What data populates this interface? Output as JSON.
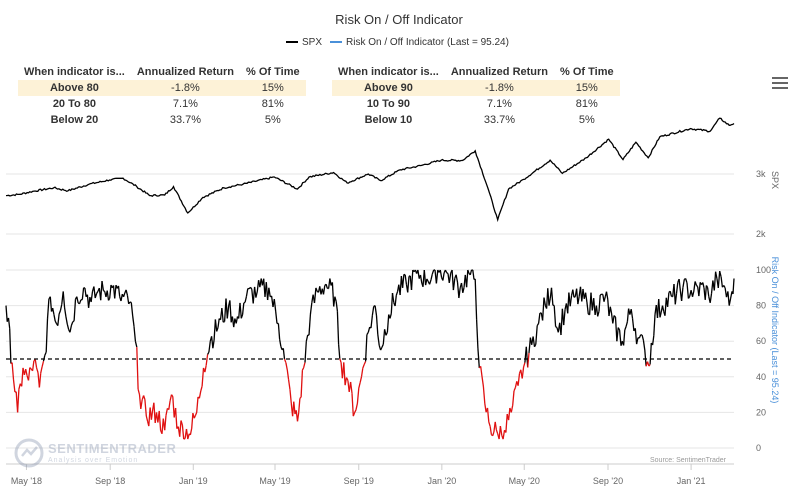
{
  "chart_data": {
    "type": "line",
    "title": "Risk On / Off Indicator",
    "legend": [
      {
        "name": "SPX",
        "color": "#000000"
      },
      {
        "name": "Risk On / Off Indicator (Last = 95.24)",
        "color": "#4a90d9"
      }
    ],
    "x_tick_labels": [
      "May '18",
      "Sep '18",
      "Jan '19",
      "May '19",
      "Sep '19",
      "Jan '20",
      "May '20",
      "Sep '20",
      "Jan '21"
    ],
    "x_tick_dates": [
      "2018-05-01",
      "2018-09-01",
      "2019-01-01",
      "2019-05-01",
      "2019-09-01",
      "2020-01-01",
      "2020-05-01",
      "2020-09-01",
      "2021-01-01"
    ],
    "x_range": [
      "2018-04-01",
      "2021-03-05"
    ],
    "spx": {
      "name": "SPX",
      "axis_title": "SPX",
      "y_tick_labels": [
        "3k",
        "2k"
      ],
      "y_tick_values": [
        3000,
        2000
      ],
      "ylim": [
        1900,
        4100
      ],
      "points": [
        [
          "2018-04-01",
          2640
        ],
        [
          "2018-04-20",
          2660
        ],
        [
          "2018-05-10",
          2710
        ],
        [
          "2018-06-10",
          2770
        ],
        [
          "2018-07-01",
          2720
        ],
        [
          "2018-08-01",
          2830
        ],
        [
          "2018-08-31",
          2900
        ],
        [
          "2018-09-20",
          2930
        ],
        [
          "2018-10-10",
          2790
        ],
        [
          "2018-10-29",
          2640
        ],
        [
          "2018-11-20",
          2650
        ],
        [
          "2018-12-03",
          2790
        ],
        [
          "2018-12-24",
          2350
        ],
        [
          "2019-01-15",
          2610
        ],
        [
          "2019-02-15",
          2770
        ],
        [
          "2019-03-15",
          2830
        ],
        [
          "2019-04-30",
          2950
        ],
        [
          "2019-06-03",
          2750
        ],
        [
          "2019-06-20",
          2950
        ],
        [
          "2019-07-26",
          3025
        ],
        [
          "2019-08-15",
          2850
        ],
        [
          "2019-09-15",
          3000
        ],
        [
          "2019-10-03",
          2890
        ],
        [
          "2019-11-01",
          3070
        ],
        [
          "2019-12-01",
          3140
        ],
        [
          "2019-12-31",
          3230
        ],
        [
          "2020-01-31",
          3225
        ],
        [
          "2020-02-19",
          3386
        ],
        [
          "2020-03-09",
          2750
        ],
        [
          "2020-03-23",
          2237
        ],
        [
          "2020-04-08",
          2750
        ],
        [
          "2020-04-30",
          2910
        ],
        [
          "2020-06-08",
          3230
        ],
        [
          "2020-06-26",
          3010
        ],
        [
          "2020-07-31",
          3270
        ],
        [
          "2020-09-02",
          3580
        ],
        [
          "2020-09-23",
          3240
        ],
        [
          "2020-10-12",
          3530
        ],
        [
          "2020-10-30",
          3270
        ],
        [
          "2020-11-16",
          3620
        ],
        [
          "2020-12-31",
          3756
        ],
        [
          "2021-01-29",
          3714
        ],
        [
          "2021-02-12",
          3930
        ],
        [
          "2021-02-26",
          3811
        ],
        [
          "2021-03-05",
          3841
        ]
      ]
    },
    "indicator": {
      "name": "Risk On / Off Indicator (Last = 95.24)",
      "axis_title": "Risk On / Off Indicator (Last = 95.24)",
      "last": 95.24,
      "threshold": 50,
      "color_above": "#000000",
      "color_below": "#e01010",
      "y_tick_values": [
        0,
        20,
        40,
        60,
        80,
        100
      ],
      "ylim": [
        0,
        100
      ],
      "points": [
        [
          "2018-04-01",
          80
        ],
        [
          "2018-04-10",
          48
        ],
        [
          "2018-04-18",
          20
        ],
        [
          "2018-04-26",
          45
        ],
        [
          "2018-05-04",
          38
        ],
        [
          "2018-05-12",
          49
        ],
        [
          "2018-05-20",
          34
        ],
        [
          "2018-05-28",
          52
        ],
        [
          "2018-06-05",
          85
        ],
        [
          "2018-06-14",
          70
        ],
        [
          "2018-06-24",
          88
        ],
        [
          "2018-07-04",
          65
        ],
        [
          "2018-07-14",
          85
        ],
        [
          "2018-07-24",
          90
        ],
        [
          "2018-08-04",
          82
        ],
        [
          "2018-08-14",
          88
        ],
        [
          "2018-08-24",
          88
        ],
        [
          "2018-09-04",
          90
        ],
        [
          "2018-09-15",
          85
        ],
        [
          "2018-09-30",
          82
        ],
        [
          "2018-10-08",
          60
        ],
        [
          "2018-10-14",
          30
        ],
        [
          "2018-10-24",
          18
        ],
        [
          "2018-11-08",
          20
        ],
        [
          "2018-11-20",
          10
        ],
        [
          "2018-11-30",
          30
        ],
        [
          "2018-12-10",
          12
        ],
        [
          "2018-12-26",
          8
        ],
        [
          "2019-01-06",
          20
        ],
        [
          "2019-01-16",
          45
        ],
        [
          "2019-01-26",
          60
        ],
        [
          "2019-02-10",
          72
        ],
        [
          "2019-02-22",
          80
        ],
        [
          "2019-03-05",
          70
        ],
        [
          "2019-03-20",
          85
        ],
        [
          "2019-04-05",
          88
        ],
        [
          "2019-04-22",
          90
        ],
        [
          "2019-05-06",
          70
        ],
        [
          "2019-05-15",
          50
        ],
        [
          "2019-05-25",
          25
        ],
        [
          "2019-06-03",
          15
        ],
        [
          "2019-06-12",
          45
        ],
        [
          "2019-06-22",
          75
        ],
        [
          "2019-07-02",
          88
        ],
        [
          "2019-07-15",
          92
        ],
        [
          "2019-07-28",
          85
        ],
        [
          "2019-08-06",
          48
        ],
        [
          "2019-08-16",
          38
        ],
        [
          "2019-08-26",
          20
        ],
        [
          "2019-09-05",
          40
        ],
        [
          "2019-09-15",
          65
        ],
        [
          "2019-09-25",
          80
        ],
        [
          "2019-10-03",
          55
        ],
        [
          "2019-10-15",
          75
        ],
        [
          "2019-10-28",
          88
        ],
        [
          "2019-11-10",
          92
        ],
        [
          "2019-11-25",
          98
        ],
        [
          "2019-12-10",
          95
        ],
        [
          "2019-12-26",
          100
        ],
        [
          "2020-01-10",
          98
        ],
        [
          "2020-01-28",
          90
        ],
        [
          "2020-02-10",
          98
        ],
        [
          "2020-02-19",
          95
        ],
        [
          "2020-02-25",
          45
        ],
        [
          "2020-03-04",
          25
        ],
        [
          "2020-03-12",
          12
        ],
        [
          "2020-03-23",
          8
        ],
        [
          "2020-04-02",
          10
        ],
        [
          "2020-04-12",
          20
        ],
        [
          "2020-04-22",
          35
        ],
        [
          "2020-05-02",
          48
        ],
        [
          "2020-05-12",
          58
        ],
        [
          "2020-05-22",
          70
        ],
        [
          "2020-06-01",
          80
        ],
        [
          "2020-06-10",
          90
        ],
        [
          "2020-06-20",
          65
        ],
        [
          "2020-06-30",
          78
        ],
        [
          "2020-07-15",
          85
        ],
        [
          "2020-08-01",
          82
        ],
        [
          "2020-08-15",
          80
        ],
        [
          "2020-08-28",
          85
        ],
        [
          "2020-09-08",
          70
        ],
        [
          "2020-09-22",
          60
        ],
        [
          "2020-10-05",
          78
        ],
        [
          "2020-10-15",
          62
        ],
        [
          "2020-10-25",
          55
        ],
        [
          "2020-10-31",
          46
        ],
        [
          "2020-11-09",
          75
        ],
        [
          "2020-11-20",
          80
        ],
        [
          "2020-12-05",
          85
        ],
        [
          "2020-12-20",
          90
        ],
        [
          "2021-01-05",
          88
        ],
        [
          "2021-01-20",
          90
        ],
        [
          "2021-01-27",
          85
        ],
        [
          "2021-02-08",
          95
        ],
        [
          "2021-02-20",
          90
        ],
        [
          "2021-02-26",
          80
        ],
        [
          "2021-03-02",
          88
        ],
        [
          "2021-03-05",
          95.24
        ]
      ]
    }
  },
  "tables": [
    {
      "headers": [
        "When indicator is...",
        "Annualized Return",
        "% Of Time"
      ],
      "rows": [
        {
          "label": "Above 80",
          "ret": "-1.8%",
          "time": "15%"
        },
        {
          "label": "20 To 80",
          "ret": "7.1%",
          "time": "81%"
        },
        {
          "label": "Below 20",
          "ret": "33.7%",
          "time": "5%"
        }
      ]
    },
    {
      "headers": [
        "When indicator is...",
        "Annualized Return",
        "% Of Time"
      ],
      "rows": [
        {
          "label": "Above 90",
          "ret": "-1.8%",
          "time": "15%"
        },
        {
          "label": "10 To 90",
          "ret": "7.1%",
          "time": "81%"
        },
        {
          "label": "Below 10",
          "ret": "33.7%",
          "time": "5%"
        }
      ]
    }
  ],
  "watermark": {
    "name": "SENTIMENTRADER",
    "tagline": "Analysis over Emotion"
  },
  "source": "Source: SentimenTrader",
  "menu_icon": "hamburger-menu-icon"
}
